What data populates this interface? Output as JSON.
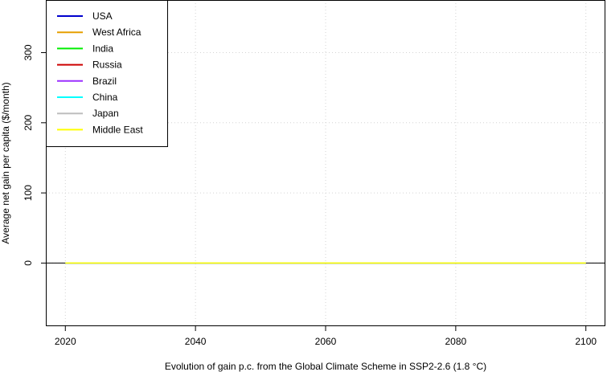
{
  "chart_data": {
    "type": "line",
    "title": "",
    "xlabel": "Evolution of  gain  p.c. from the Global Climate Scheme in SSP2-2.6 (1.8 °C)",
    "ylabel": "Average net gain per capita ($/month)",
    "xlim": [
      2017,
      2103
    ],
    "ylim": [
      -90,
      375
    ],
    "x_ticks": [
      2020,
      2040,
      2060,
      2080,
      2100
    ],
    "y_ticks": [
      0,
      100,
      200,
      300
    ],
    "grid": true,
    "legend_position": "top-left",
    "x": [
      2020,
      2030,
      2040,
      2050,
      2060,
      2070,
      2080,
      2090,
      2100
    ],
    "series": [
      {
        "name": "USA",
        "color": "#0000CD",
        "values": [
          0,
          0,
          0,
          0,
          0,
          0,
          0,
          0,
          0
        ]
      },
      {
        "name": "West Africa",
        "color": "#E69F00",
        "values": [
          0,
          0,
          0,
          0,
          0,
          0,
          0,
          0,
          0
        ]
      },
      {
        "name": "India",
        "color": "#00EE00",
        "values": [
          0,
          0,
          0,
          0,
          0,
          0,
          0,
          0,
          0
        ]
      },
      {
        "name": "Russia",
        "color": "#CD0000",
        "values": [
          0,
          0,
          0,
          0,
          0,
          0,
          0,
          0,
          0
        ]
      },
      {
        "name": "Brazil",
        "color": "#9B30FF",
        "values": [
          0,
          0,
          0,
          0,
          0,
          0,
          0,
          0,
          0
        ]
      },
      {
        "name": "China",
        "color": "#00FFFF",
        "values": [
          0,
          0,
          0,
          0,
          0,
          0,
          0,
          0,
          0
        ]
      },
      {
        "name": "Japan",
        "color": "#BEBEBE",
        "values": [
          0,
          0,
          0,
          0,
          0,
          0,
          0,
          0,
          0
        ]
      },
      {
        "name": "Middle East",
        "color": "#FFFF00",
        "values": [
          0,
          0,
          0,
          0,
          0,
          0,
          0,
          0,
          0
        ]
      }
    ],
    "reference_line": {
      "y": 0,
      "color": "#000000"
    }
  }
}
